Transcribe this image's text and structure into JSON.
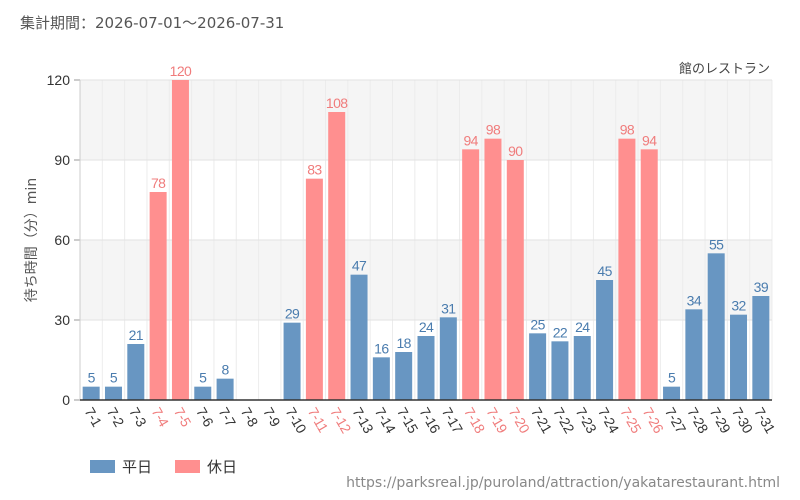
{
  "header": {
    "period": "集計期間：2026-07-01～2026-07-31"
  },
  "footer": {
    "url": "https://parksreal.jp/puroland/attraction/yakatarestaurant.html"
  },
  "chart_data": {
    "type": "bar",
    "title": "館のレストラン",
    "xlabel": "",
    "ylabel": "待ち時間（分）min",
    "ylim": [
      0,
      120
    ],
    "yticks": [
      0,
      30,
      60,
      90,
      120
    ],
    "grid": true,
    "legend_position": "bottom-left",
    "categories": [
      "7-1",
      "7-2",
      "7-3",
      "7-4",
      "7-5",
      "7-6",
      "7-7",
      "7-8",
      "7-9",
      "7-10",
      "7-11",
      "7-12",
      "7-13",
      "7-14",
      "7-15",
      "7-16",
      "7-17",
      "7-18",
      "7-19",
      "7-20",
      "7-21",
      "7-22",
      "7-23",
      "7-24",
      "7-25",
      "7-26",
      "7-27",
      "7-28",
      "7-29",
      "7-30",
      "7-31"
    ],
    "holiday_categories": [
      "7-4",
      "7-5",
      "7-11",
      "7-12",
      "7-18",
      "7-19",
      "7-20",
      "7-25",
      "7-26"
    ],
    "weekday_tick_color": "#333333",
    "holiday_tick_color": "#f07c7c",
    "series": [
      {
        "name": "平日",
        "color": "#6896c2",
        "label_color": "#4a7cae",
        "values": [
          5,
          5,
          21,
          null,
          null,
          5,
          8,
          null,
          null,
          29,
          null,
          null,
          47,
          16,
          18,
          24,
          31,
          null,
          null,
          null,
          25,
          22,
          24,
          45,
          null,
          null,
          5,
          34,
          55,
          32,
          39
        ]
      },
      {
        "name": "休日",
        "color": "#ff8f8f",
        "label_color": "#f07c7c",
        "values": [
          null,
          null,
          null,
          78,
          120,
          null,
          null,
          null,
          null,
          null,
          83,
          108,
          null,
          null,
          null,
          null,
          null,
          94,
          98,
          90,
          null,
          null,
          null,
          null,
          98,
          94,
          null,
          null,
          null,
          null,
          null
        ]
      }
    ]
  }
}
